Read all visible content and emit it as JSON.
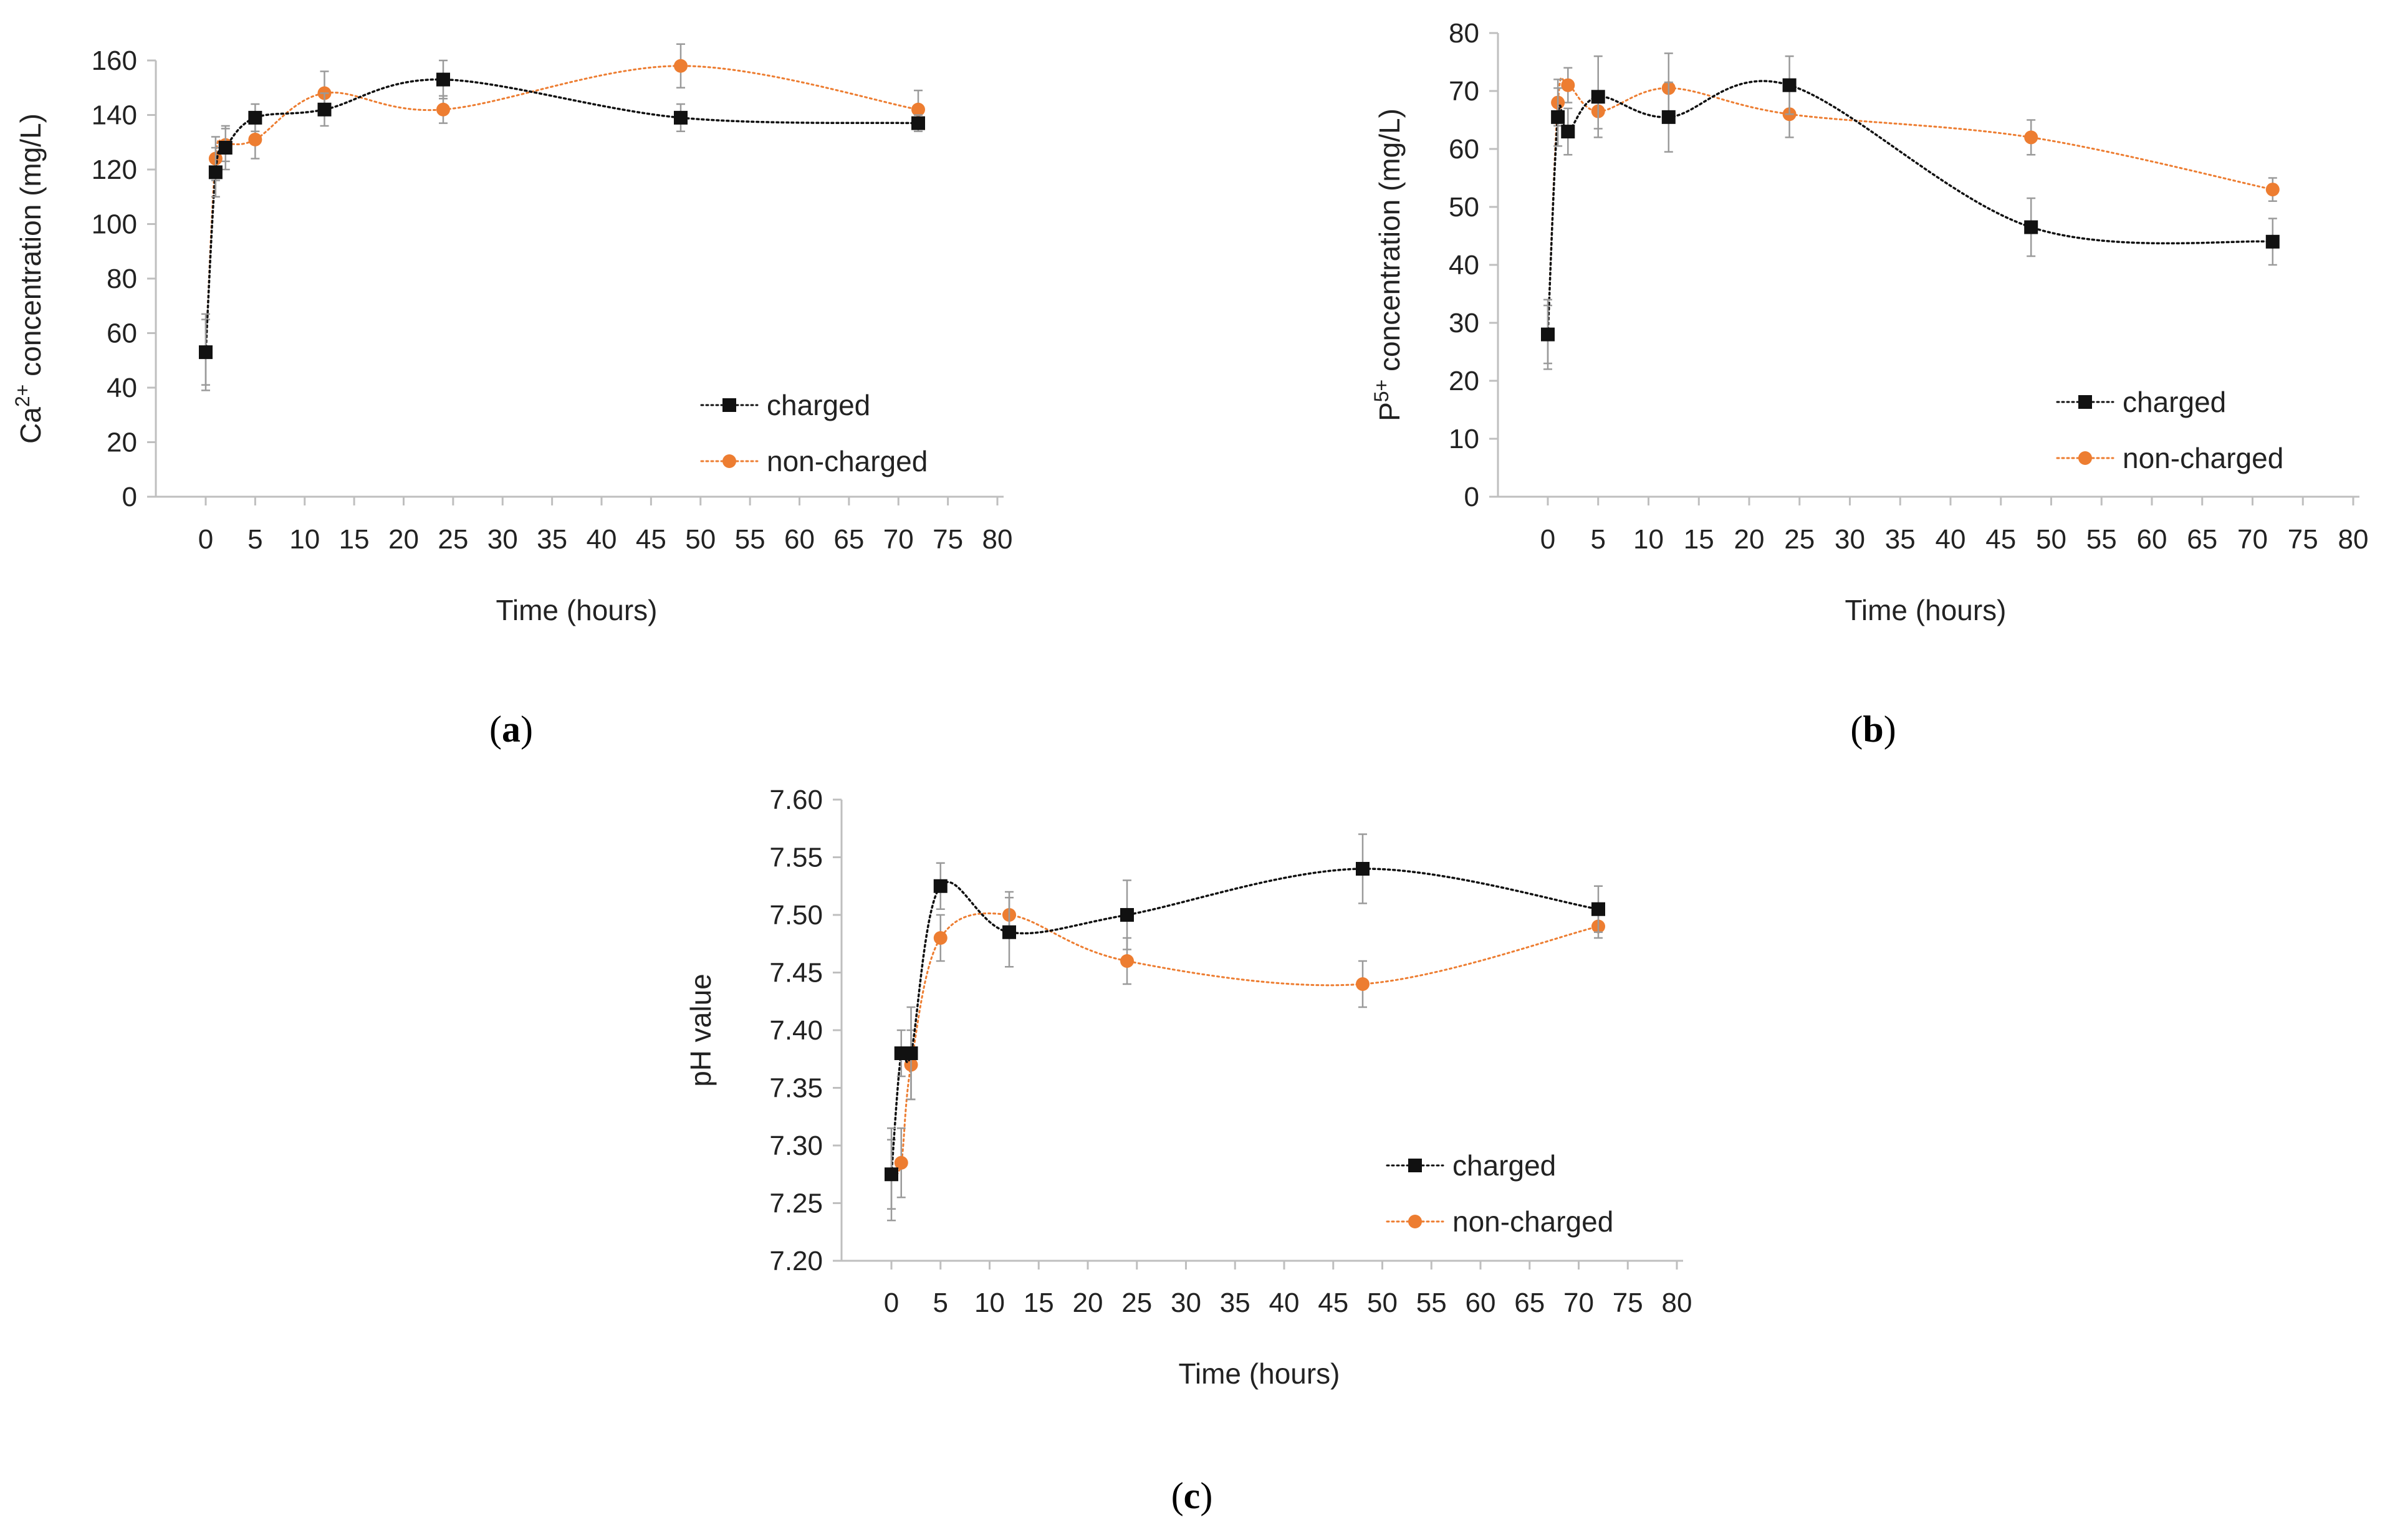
{
  "colors": {
    "charged": "#111111",
    "non_charged": "#ED7D31",
    "error_bar": "#9a9a9a",
    "axis": "#bfbfbf"
  },
  "chart_data": [
    {
      "id": "a",
      "type": "scatter",
      "panel_label": "a",
      "title": "",
      "xlabel": "Time (hours)",
      "ylabel_parts": [
        "Ca",
        "2+",
        " concentration (mg/L)"
      ],
      "xlim": [
        0,
        80
      ],
      "ylim": [
        0,
        160
      ],
      "xticks": [
        "0",
        "5",
        "10",
        "15",
        "20",
        "25",
        "30",
        "35",
        "40",
        "45",
        "50",
        "55",
        "60",
        "65",
        "70",
        "75",
        "80"
      ],
      "yticks": [
        "0",
        "20",
        "40",
        "60",
        "80",
        "100",
        "120",
        "140",
        "160"
      ],
      "grid": false,
      "legend_position": "bottom-right",
      "series": [
        {
          "name": "charged",
          "marker": "square",
          "line": "dotted smooth",
          "x": [
            0,
            1,
            2,
            5,
            12,
            24,
            48,
            72
          ],
          "y": [
            53,
            119,
            128,
            139,
            142,
            153,
            139,
            137
          ],
          "error": [
            14,
            9,
            8,
            5,
            6,
            7,
            5,
            3
          ]
        },
        {
          "name": "non-charged",
          "marker": "circle",
          "line": "dotted smooth",
          "x": [
            0,
            1,
            2,
            5,
            12,
            24,
            48,
            72
          ],
          "y": [
            53,
            124,
            129,
            131,
            148,
            142,
            158,
            142
          ],
          "error": [
            12,
            8,
            6,
            7,
            8,
            5,
            8,
            7
          ]
        }
      ]
    },
    {
      "id": "b",
      "type": "scatter",
      "panel_label": "b",
      "title": "",
      "xlabel": "Time (hours)",
      "ylabel_parts": [
        "P",
        "5+",
        " concentration (mg/L)"
      ],
      "xlim": [
        0,
        80
      ],
      "ylim": [
        0,
        80
      ],
      "xticks": [
        "0",
        "5",
        "10",
        "15",
        "20",
        "25",
        "30",
        "35",
        "40",
        "45",
        "50",
        "55",
        "60",
        "65",
        "70",
        "75",
        "80"
      ],
      "yticks": [
        "0",
        "10",
        "20",
        "30",
        "40",
        "50",
        "60",
        "70",
        "80"
      ],
      "grid": false,
      "legend_position": "bottom-right",
      "series": [
        {
          "name": "charged",
          "marker": "square",
          "line": "dotted smooth",
          "x": [
            0,
            1,
            2,
            5,
            12,
            24,
            48,
            72
          ],
          "y": [
            28,
            65.5,
            63,
            69,
            65.5,
            71,
            46.5,
            44
          ],
          "error": [
            6,
            5,
            4,
            7,
            6,
            5,
            5,
            4
          ]
        },
        {
          "name": "non-charged",
          "marker": "circle",
          "line": "dotted smooth",
          "x": [
            0,
            1,
            2,
            5,
            12,
            24,
            48,
            72
          ],
          "y": [
            28,
            68,
            71,
            66.5,
            70.5,
            66,
            62,
            53
          ],
          "error": [
            5,
            4,
            3,
            3,
            6,
            4,
            3,
            2
          ]
        }
      ]
    },
    {
      "id": "c",
      "type": "scatter",
      "panel_label": "c",
      "title": "",
      "xlabel": "Time (hours)",
      "ylabel_parts": [
        "pH value",
        "",
        ""
      ],
      "xlim": [
        0,
        80
      ],
      "ylim": [
        7.2,
        7.6
      ],
      "xticks": [
        "0",
        "5",
        "10",
        "15",
        "20",
        "25",
        "30",
        "35",
        "40",
        "45",
        "50",
        "55",
        "60",
        "65",
        "70",
        "75",
        "80"
      ],
      "yticks": [
        "7.20",
        "7.25",
        "7.30",
        "7.35",
        "7.40",
        "7.45",
        "7.50",
        "7.55",
        "7.60"
      ],
      "grid": false,
      "legend_position": "bottom-right",
      "series": [
        {
          "name": "charged",
          "marker": "square",
          "line": "dotted smooth",
          "x": [
            0,
            1,
            2,
            5,
            12,
            24,
            48,
            72
          ],
          "y": [
            7.275,
            7.38,
            7.38,
            7.525,
            7.485,
            7.5,
            7.54,
            7.505
          ],
          "error": [
            0.04,
            0.02,
            0.04,
            0.02,
            0.03,
            0.03,
            0.03,
            0.02
          ]
        },
        {
          "name": "non-charged",
          "marker": "circle",
          "line": "dotted smooth",
          "x": [
            0,
            1,
            2,
            5,
            12,
            24,
            48,
            72
          ],
          "y": [
            7.275,
            7.285,
            7.37,
            7.48,
            7.5,
            7.46,
            7.44,
            7.49
          ],
          "error": [
            0.03,
            0.03,
            0.03,
            0.02,
            0.02,
            0.02,
            0.02,
            0.01
          ]
        }
      ]
    }
  ]
}
